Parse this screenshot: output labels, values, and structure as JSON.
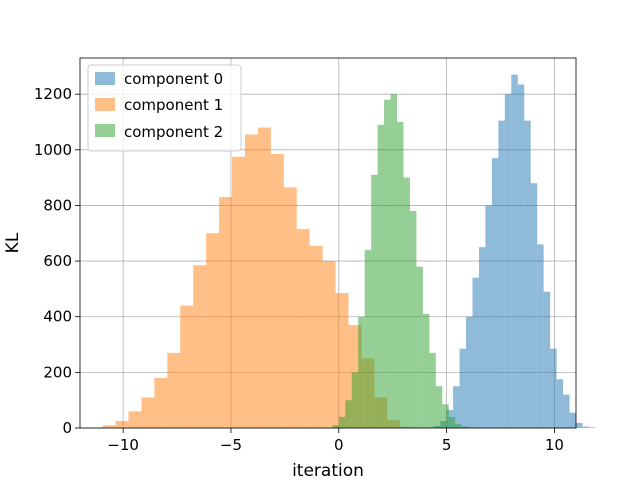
{
  "chart_data": {
    "type": "histogram",
    "xlabel": "iteration",
    "ylabel": "KL",
    "xlim": [
      -12,
      11
    ],
    "ylim": [
      0,
      1330
    ],
    "xticks": [
      -10,
      -5,
      0,
      5,
      10
    ],
    "yticks": [
      0,
      200,
      400,
      600,
      800,
      1000,
      1200
    ],
    "grid": true,
    "legend_position": "top-left",
    "series": [
      {
        "name": "component 0",
        "color": "#1f77b4",
        "bin_start": 4.1,
        "bin_width": 0.3,
        "counts": [
          2,
          8,
          25,
          65,
          150,
          285,
          400,
          540,
          650,
          800,
          970,
          1105,
          1200,
          1270,
          1235,
          1105,
          880,
          660,
          490,
          285,
          175,
          120,
          55,
          18,
          5,
          2
        ]
      },
      {
        "name": "component 1",
        "color": "#ff7f0e",
        "bin_start": -10.95,
        "bin_width": 0.6,
        "counts": [
          10,
          25,
          60,
          110,
          180,
          270,
          440,
          585,
          700,
          830,
          975,
          1055,
          1080,
          985,
          865,
          715,
          655,
          600,
          485,
          370,
          250,
          110,
          28,
          4
        ]
      },
      {
        "name": "component 2",
        "color": "#2ca02c",
        "bin_start": -0.3,
        "bin_width": 0.3,
        "counts": [
          10,
          40,
          100,
          200,
          400,
          640,
          910,
          1090,
          1180,
          1200,
          1100,
          900,
          780,
          580,
          410,
          270,
          150,
          85,
          40,
          15,
          5,
          2
        ]
      }
    ]
  },
  "legend": {
    "items": [
      "component 0",
      "component 1",
      "component 2"
    ]
  }
}
